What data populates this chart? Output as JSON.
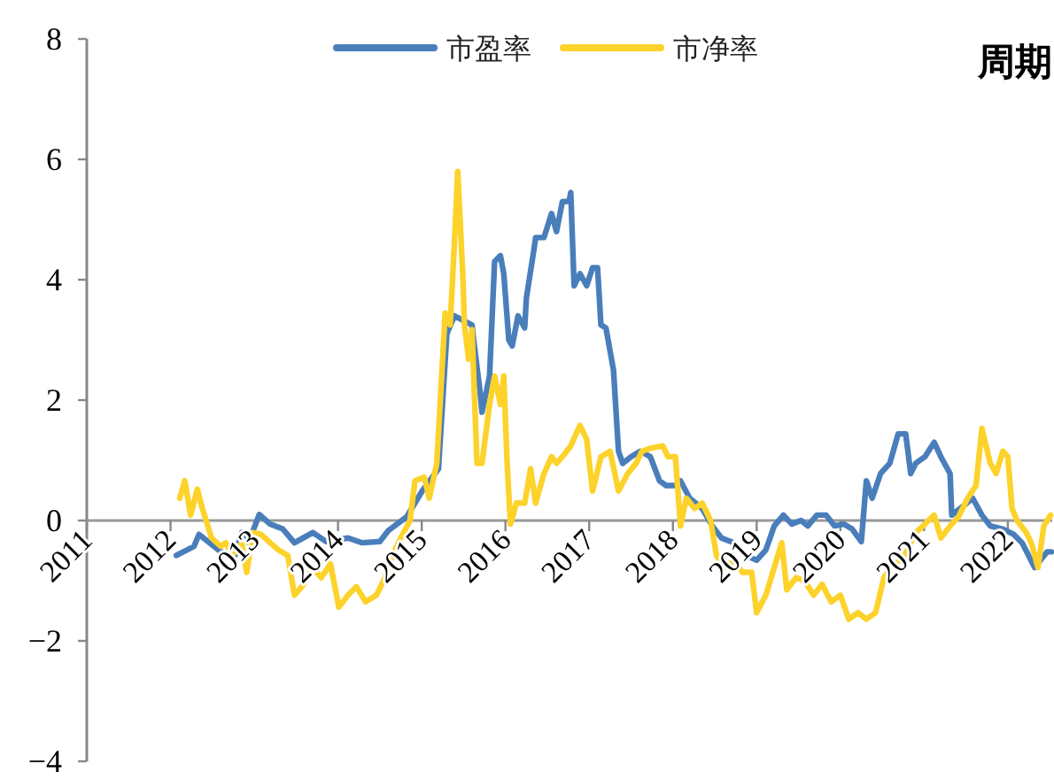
{
  "chart_data": {
    "type": "line",
    "title": "周期",
    "legend": "top",
    "xlim": [
      2011,
      2022.53
    ],
    "ylim": [
      -4,
      8
    ],
    "xticks": [
      2011,
      2012,
      2013,
      2014,
      2015,
      2016,
      2017,
      2018,
      2019,
      2020,
      2021,
      2022
    ],
    "yticks": [
      {
        "value": -4,
        "label": "−4"
      },
      {
        "value": -2,
        "label": "−2"
      },
      0,
      2,
      4,
      6,
      8
    ],
    "series": [
      {
        "name": "市盈率",
        "color": "#4a7ebb",
        "x": [
          2012.07,
          2012.28,
          2012.34,
          2012.6,
          2012.77,
          2012.85,
          2012.93,
          2013.06,
          2013.19,
          2013.34,
          2013.48,
          2013.7,
          2013.86,
          2014.12,
          2014.29,
          2014.5,
          2014.6,
          2014.82,
          2015.01,
          2015.2,
          2015.3,
          2015.39,
          2015.6,
          2015.62,
          2015.7,
          2015.72,
          2015.81,
          2015.87,
          2015.94,
          2015.98,
          2016.04,
          2016.08,
          2016.15,
          2016.23,
          2016.25,
          2016.34,
          2016.36,
          2016.46,
          2016.55,
          2016.61,
          2016.68,
          2016.76,
          2016.78,
          2016.82,
          2016.89,
          2016.97,
          2017.04,
          2017.1,
          2017.14,
          2017.2,
          2017.29,
          2017.35,
          2017.4,
          2017.5,
          2017.61,
          2017.73,
          2017.84,
          2017.92,
          2018.03,
          2018.09,
          2018.2,
          2018.35,
          2018.47,
          2018.58,
          2018.73,
          2018.87,
          2019.0,
          2019.11,
          2019.21,
          2019.32,
          2019.42,
          2019.53,
          2019.61,
          2019.72,
          2019.83,
          2019.93,
          2020.04,
          2020.14,
          2020.25,
          2020.31,
          2020.38,
          2020.48,
          2020.59,
          2020.69,
          2020.78,
          2020.84,
          2020.9,
          2021.01,
          2021.12,
          2021.2,
          2021.31,
          2021.33,
          2021.43,
          2021.58,
          2021.69,
          2021.79,
          2021.94,
          2022.07,
          2022.17,
          2022.32,
          2022.47,
          2022.52
        ],
        "values": [
          -0.58,
          -0.43,
          -0.23,
          -0.52,
          -0.58,
          -0.2,
          -0.37,
          0.1,
          -0.06,
          -0.14,
          -0.37,
          -0.2,
          -0.35,
          -0.29,
          -0.37,
          -0.35,
          -0.17,
          0.06,
          0.5,
          0.86,
          3.1,
          3.4,
          3.25,
          3.0,
          2.1,
          1.8,
          2.4,
          4.3,
          4.4,
          4.1,
          3.0,
          2.9,
          3.4,
          3.2,
          3.7,
          4.5,
          4.7,
          4.7,
          5.1,
          4.8,
          5.3,
          5.3,
          5.45,
          3.9,
          4.1,
          3.9,
          4.2,
          4.2,
          3.25,
          3.2,
          2.5,
          1.15,
          0.95,
          1.06,
          1.15,
          1.06,
          0.66,
          0.58,
          0.58,
          0.66,
          0.37,
          0.2,
          -0.09,
          -0.29,
          -0.37,
          -0.58,
          -0.66,
          -0.49,
          -0.09,
          0.09,
          -0.06,
          0.0,
          -0.09,
          0.09,
          0.09,
          -0.09,
          -0.06,
          -0.14,
          -0.35,
          0.66,
          0.37,
          0.78,
          0.95,
          1.44,
          1.44,
          0.78,
          0.95,
          1.06,
          1.3,
          1.06,
          0.78,
          0.09,
          0.2,
          0.37,
          0.09,
          -0.09,
          -0.14,
          -0.23,
          -0.37,
          -0.78,
          -0.52,
          -0.52
        ]
      },
      {
        "name": "市净率",
        "color": "#fdd22a",
        "x": [
          2012.11,
          2012.17,
          2012.24,
          2012.32,
          2012.38,
          2012.49,
          2012.6,
          2012.66,
          2012.74,
          2012.85,
          2012.91,
          2012.98,
          2013.08,
          2013.19,
          2013.29,
          2013.4,
          2013.48,
          2013.59,
          2013.7,
          2013.8,
          2013.91,
          2014.01,
          2014.12,
          2014.22,
          2014.33,
          2014.46,
          2014.56,
          2014.65,
          2014.75,
          2014.86,
          2014.92,
          2015.03,
          2015.09,
          2015.18,
          2015.28,
          2015.34,
          2015.39,
          2015.43,
          2015.49,
          2015.51,
          2015.56,
          2015.6,
          2015.66,
          2015.72,
          2015.81,
          2015.87,
          2015.94,
          2015.98,
          2016.02,
          2016.06,
          2016.13,
          2016.23,
          2016.3,
          2016.36,
          2016.46,
          2016.55,
          2016.61,
          2016.68,
          2016.78,
          2016.89,
          2016.97,
          2017.04,
          2017.14,
          2017.25,
          2017.35,
          2017.46,
          2017.56,
          2017.63,
          2017.73,
          2017.88,
          2017.94,
          2018.03,
          2018.09,
          2018.16,
          2018.26,
          2018.35,
          2018.45,
          2018.52,
          2018.62,
          2018.73,
          2018.83,
          2018.94,
          2019.0,
          2019.11,
          2019.21,
          2019.3,
          2019.36,
          2019.47,
          2019.57,
          2019.68,
          2019.78,
          2019.89,
          2020.0,
          2020.1,
          2020.21,
          2020.31,
          2020.42,
          2020.52,
          2020.63,
          2020.74,
          2020.84,
          2020.9,
          2021.01,
          2021.12,
          2021.2,
          2021.31,
          2021.41,
          2021.52,
          2021.62,
          2021.69,
          2021.79,
          2021.86,
          2021.94,
          2022.0,
          2022.05,
          2022.11,
          2022.22,
          2022.28,
          2022.36,
          2022.43,
          2022.51
        ],
        "values": [
          0.37,
          0.66,
          0.09,
          0.52,
          0.2,
          -0.29,
          -0.43,
          -0.37,
          -0.58,
          -0.37,
          -0.86,
          -0.2,
          -0.23,
          -0.37,
          -0.49,
          -0.58,
          -1.24,
          -1.06,
          -0.78,
          -0.95,
          -0.72,
          -1.44,
          -1.24,
          -1.1,
          -1.35,
          -1.24,
          -0.95,
          -0.58,
          -0.29,
          0.0,
          0.66,
          0.72,
          0.37,
          0.95,
          3.45,
          3.25,
          4.6,
          5.8,
          4.1,
          3.25,
          2.68,
          3.17,
          0.95,
          0.95,
          1.93,
          2.4,
          1.93,
          2.4,
          0.95,
          -0.06,
          0.29,
          0.29,
          0.86,
          0.29,
          0.78,
          1.06,
          0.95,
          1.06,
          1.24,
          1.58,
          1.35,
          0.49,
          1.06,
          1.15,
          0.49,
          0.78,
          0.95,
          1.15,
          1.2,
          1.24,
          1.06,
          1.06,
          -0.09,
          0.37,
          0.2,
          0.29,
          0.0,
          -0.58,
          -0.78,
          -0.66,
          -0.86,
          -0.86,
          -1.53,
          -1.24,
          -0.78,
          -0.37,
          -1.15,
          -0.95,
          -1.0,
          -1.24,
          -1.06,
          -1.35,
          -1.24,
          -1.64,
          -1.53,
          -1.64,
          -1.53,
          -0.95,
          -0.72,
          -0.66,
          -0.37,
          -0.2,
          -0.06,
          0.09,
          -0.29,
          -0.09,
          0.06,
          0.37,
          0.58,
          1.53,
          0.95,
          0.78,
          1.15,
          1.06,
          0.2,
          0.0,
          -0.2,
          -0.37,
          -0.78,
          -0.09,
          0.09
        ]
      }
    ]
  }
}
